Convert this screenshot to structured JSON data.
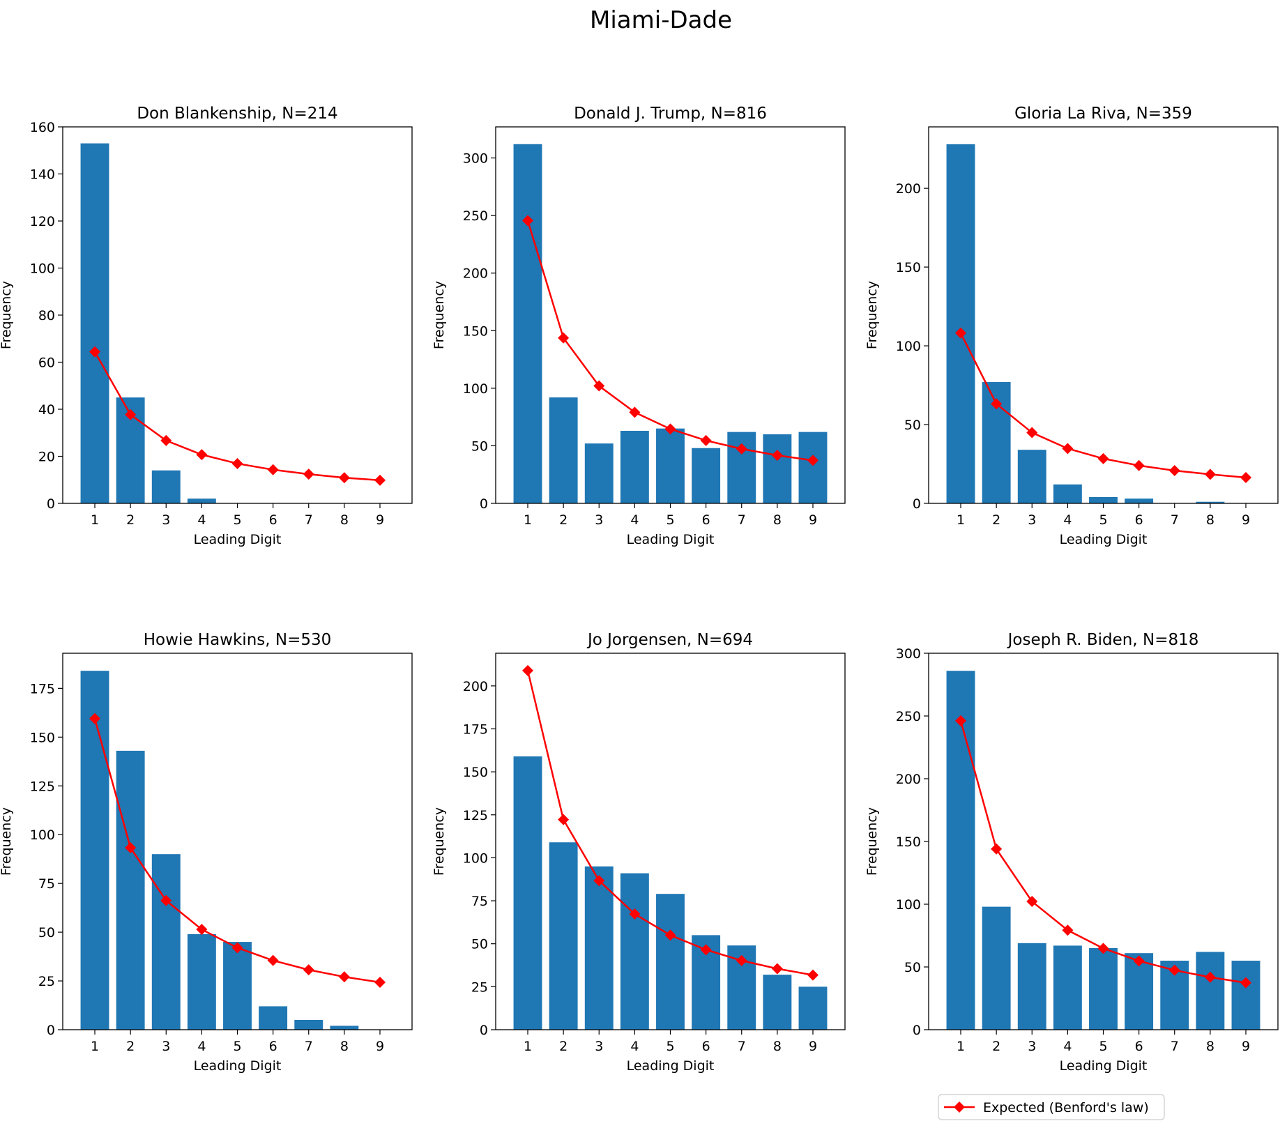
{
  "figure_title": "Miami-Dade",
  "legend": {
    "label": "Expected (Benford's law)",
    "color": "#ff0000",
    "placement": "below-bottom-right"
  },
  "colors": {
    "bar": "#1f77b4",
    "expected": "#ff0000"
  },
  "chart_data": [
    {
      "type": "bar",
      "title": "Don Blankenship, N=214",
      "xlabel": "Leading Digit",
      "ylabel": "Frequency",
      "categories": [
        "1",
        "2",
        "3",
        "4",
        "5",
        "6",
        "7",
        "8",
        "9"
      ],
      "ylim": [
        0,
        160
      ],
      "yticks": [
        0,
        20,
        40,
        60,
        80,
        100,
        120,
        140,
        160
      ],
      "series": [
        {
          "name": "Observed",
          "kind": "bar",
          "values": [
            153,
            45,
            14,
            2,
            0,
            0,
            0,
            0,
            0
          ]
        },
        {
          "name": "Expected (Benford's law)",
          "kind": "line",
          "values": [
            64.4,
            37.7,
            26.7,
            20.7,
            16.9,
            14.3,
            12.4,
            10.9,
            9.8
          ]
        }
      ]
    },
    {
      "type": "bar",
      "title": "Donald J. Trump, N=816",
      "xlabel": "Leading Digit",
      "ylabel": "Frequency",
      "categories": [
        "1",
        "2",
        "3",
        "4",
        "5",
        "6",
        "7",
        "8",
        "9"
      ],
      "ylim": [
        0,
        327
      ],
      "yticks": [
        0,
        50,
        100,
        150,
        200,
        250,
        300
      ],
      "series": [
        {
          "name": "Observed",
          "kind": "bar",
          "values": [
            312,
            92,
            52,
            63,
            65,
            48,
            62,
            60,
            62
          ]
        },
        {
          "name": "Expected (Benford's law)",
          "kind": "line",
          "values": [
            245.6,
            143.7,
            102.0,
            79.1,
            64.6,
            54.6,
            47.3,
            41.7,
            37.3
          ]
        }
      ]
    },
    {
      "type": "bar",
      "title": "Gloria La Riva, N=359",
      "xlabel": "Leading Digit",
      "ylabel": "Frequency",
      "categories": [
        "1",
        "2",
        "3",
        "4",
        "5",
        "6",
        "7",
        "8",
        "9"
      ],
      "ylim": [
        0,
        239
      ],
      "yticks": [
        0,
        50,
        100,
        150,
        200
      ],
      "series": [
        {
          "name": "Observed",
          "kind": "bar",
          "values": [
            228,
            77,
            34,
            12,
            4,
            3,
            0,
            1,
            0
          ]
        },
        {
          "name": "Expected (Benford's law)",
          "kind": "line",
          "values": [
            108.1,
            63.2,
            44.9,
            34.8,
            28.4,
            24.0,
            20.8,
            18.4,
            16.4
          ]
        }
      ]
    },
    {
      "type": "bar",
      "title": "Howie Hawkins, N=530",
      "xlabel": "Leading Digit",
      "ylabel": "Frequency",
      "categories": [
        "1",
        "2",
        "3",
        "4",
        "5",
        "6",
        "7",
        "8",
        "9"
      ],
      "ylim": [
        0,
        193
      ],
      "yticks": [
        0,
        25,
        50,
        75,
        100,
        125,
        150,
        175
      ],
      "series": [
        {
          "name": "Observed",
          "kind": "bar",
          "values": [
            184,
            143,
            90,
            49,
            45,
            12,
            5,
            2,
            0
          ]
        },
        {
          "name": "Expected (Benford's law)",
          "kind": "line",
          "values": [
            159.5,
            93.3,
            66.2,
            51.4,
            42.0,
            35.5,
            30.7,
            27.1,
            24.3
          ]
        }
      ]
    },
    {
      "type": "bar",
      "title": "Jo Jorgensen, N=694",
      "xlabel": "Leading Digit",
      "ylabel": "Frequency",
      "categories": [
        "1",
        "2",
        "3",
        "4",
        "5",
        "6",
        "7",
        "8",
        "9"
      ],
      "ylim": [
        0,
        219
      ],
      "yticks": [
        0,
        25,
        50,
        75,
        100,
        125,
        150,
        175,
        200
      ],
      "series": [
        {
          "name": "Observed",
          "kind": "bar",
          "values": [
            159,
            109,
            95,
            91,
            79,
            55,
            49,
            32,
            25
          ]
        },
        {
          "name": "Expected (Benford's law)",
          "kind": "line",
          "values": [
            208.9,
            122.2,
            86.7,
            67.3,
            55.0,
            46.5,
            40.2,
            35.5,
            31.8
          ]
        }
      ]
    },
    {
      "type": "bar",
      "title": "Joseph R. Biden, N=818",
      "xlabel": "Leading Digit",
      "ylabel": "Frequency",
      "categories": [
        "1",
        "2",
        "3",
        "4",
        "5",
        "6",
        "7",
        "8",
        "9"
      ],
      "ylim": [
        0,
        300
      ],
      "yticks": [
        0,
        50,
        100,
        150,
        200,
        250,
        300
      ],
      "series": [
        {
          "name": "Observed",
          "kind": "bar",
          "values": [
            286,
            98,
            69,
            67,
            65,
            61,
            55,
            62,
            55
          ]
        },
        {
          "name": "Expected (Benford's law)",
          "kind": "line",
          "values": [
            246.2,
            144.0,
            102.2,
            79.3,
            64.8,
            54.8,
            47.4,
            41.8,
            37.4
          ]
        }
      ]
    }
  ]
}
